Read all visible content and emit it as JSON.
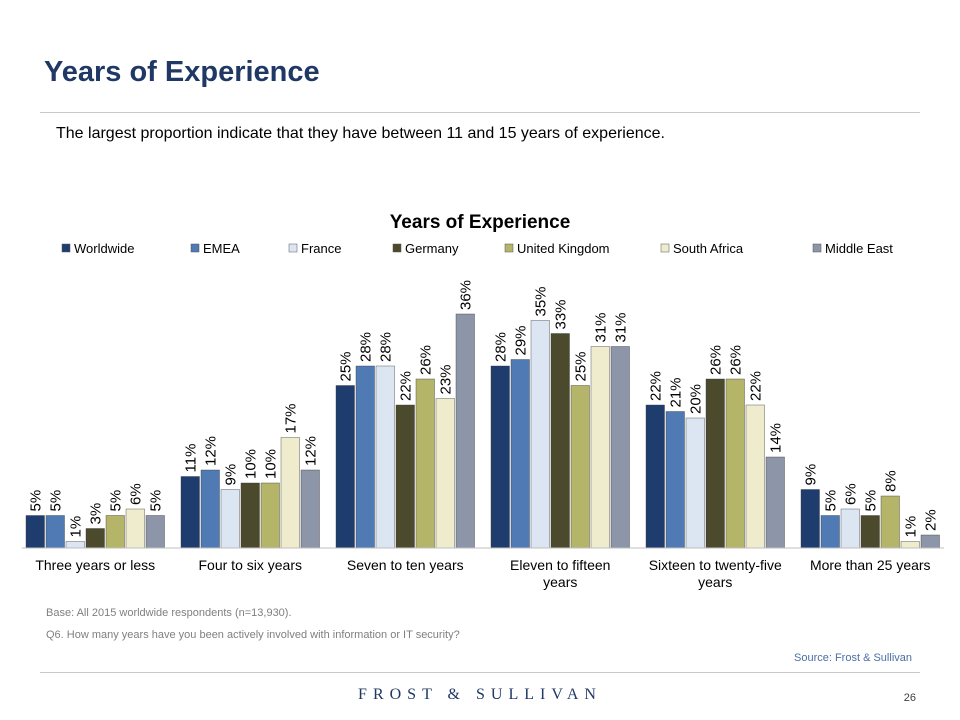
{
  "page": {
    "title": "Years of Experience",
    "subtitle": "The largest proportion indicate that they have between 11 and 15 years of experience.",
    "base_note": "Base: All 2015 worldwide respondents (n=13,930).",
    "question_note": "Q6. How many years have you been actively involved with information or IT security?",
    "source": "Source: Frost & Sullivan",
    "brand": "FROST & SULLIVAN",
    "page_number": "26"
  },
  "chart_data": {
    "type": "bar",
    "title": "Years of Experience",
    "legend_position": "top",
    "grid": false,
    "value_format": "percent",
    "ylim": [
      0,
      40
    ],
    "categories": [
      [
        "Three years or less"
      ],
      [
        "Four to six years"
      ],
      [
        "Seven to ten years"
      ],
      [
        "Eleven to fifteen",
        "years"
      ],
      [
        "Sixteen to twenty-five",
        "years"
      ],
      [
        "More than 25 years"
      ]
    ],
    "series": [
      {
        "name": "Worldwide",
        "color": "#1f3c6e",
        "values": [
          5,
          11,
          25,
          28,
          22,
          9
        ]
      },
      {
        "name": "EMEA",
        "color": "#4f7ab3",
        "values": [
          5,
          12,
          28,
          29,
          21,
          5
        ]
      },
      {
        "name": "France",
        "color": "#dce6f2",
        "values": [
          1,
          9,
          28,
          35,
          20,
          6
        ]
      },
      {
        "name": "Germany",
        "color": "#4b4a2c",
        "values": [
          3,
          10,
          22,
          33,
          26,
          5
        ]
      },
      {
        "name": "United Kingdom",
        "color": "#b5b56a",
        "values": [
          5,
          10,
          26,
          25,
          26,
          8
        ]
      },
      {
        "name": "South Africa",
        "color": "#eeeccc",
        "values": [
          6,
          17,
          23,
          31,
          22,
          1
        ]
      },
      {
        "name": "Middle East",
        "color": "#8d96a8",
        "values": [
          5,
          12,
          36,
          31,
          14,
          2
        ]
      }
    ]
  }
}
